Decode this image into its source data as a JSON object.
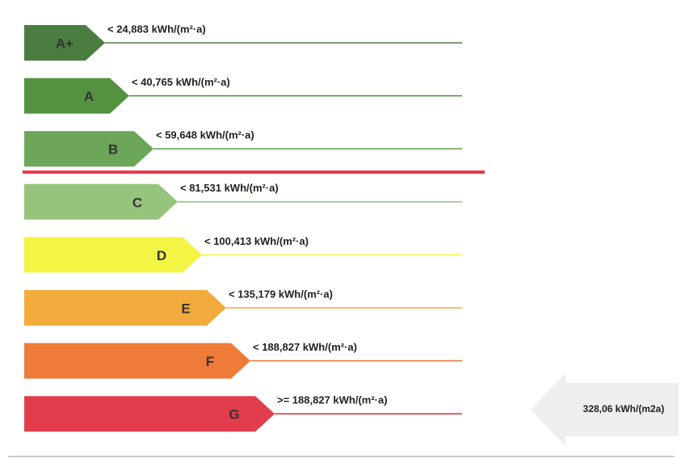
{
  "classes": [
    {
      "label": "A+",
      "threshold": "< 24,883 kWh/(m²·a)",
      "color": "#4c7d40"
    },
    {
      "label": "A",
      "threshold": "< 40,765 kWh/(m²·a)",
      "color": "#54923f"
    },
    {
      "label": "B",
      "threshold": "< 59,648 kWh/(m²·a)",
      "color": "#6ca659"
    },
    {
      "label": "C",
      "threshold": "< 81,531 kWh/(m²·a)",
      "color": "#96c47c"
    },
    {
      "label": "D",
      "threshold": "< 100,413 kWh/(m²·a)",
      "color": "#f4f445"
    },
    {
      "label": "E",
      "threshold": "< 135,179 kWh/(m²·a)",
      "color": "#f2ab3c"
    },
    {
      "label": "F",
      "threshold": "< 188,827 kWh/(m²·a)",
      "color": "#ee7b38"
    },
    {
      "label": "G",
      "threshold": ">= 188,827 kWh/(m²·a)",
      "color": "#e23d4c"
    }
  ],
  "indicator": {
    "label": "328,06 kWh/(m2a)"
  }
}
